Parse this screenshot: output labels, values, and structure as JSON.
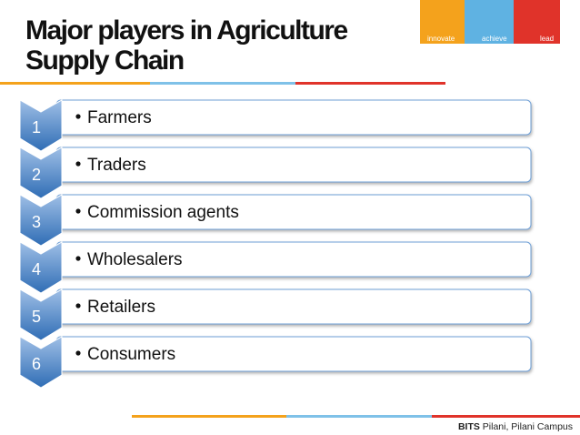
{
  "header": {
    "title_lines": [
      "Major players in Agriculture",
      "Supply Chain"
    ],
    "logo": [
      "innovate",
      "achieve",
      "lead"
    ]
  },
  "items": [
    {
      "number": "1",
      "label": "Farmers"
    },
    {
      "number": "2",
      "label": "Traders"
    },
    {
      "number": "3",
      "label": "Commission agents"
    },
    {
      "number": "4",
      "label": "Wholesalers"
    },
    {
      "number": "5",
      "label": "Retailers"
    },
    {
      "number": "6",
      "label": "Consumers"
    }
  ],
  "footer": {
    "brand": "BITS",
    "place": "Pilani, Pilani Campus"
  }
}
